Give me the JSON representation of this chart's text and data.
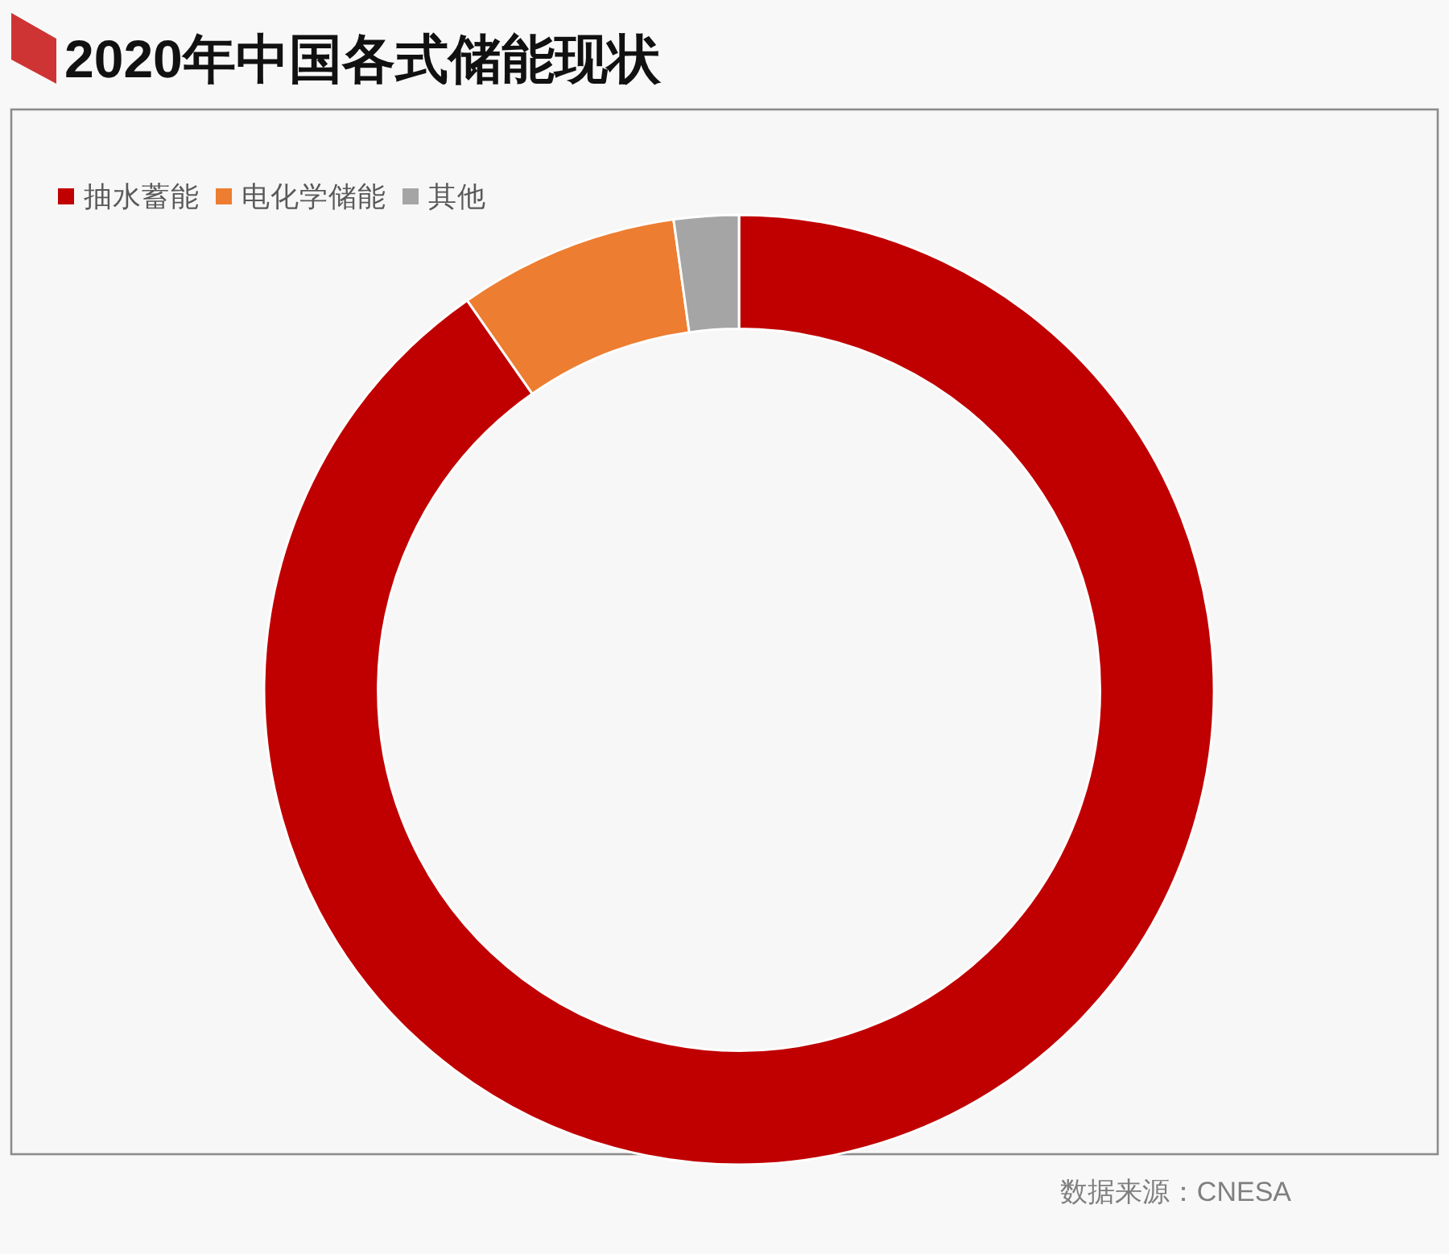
{
  "chart_data": {
    "type": "donut",
    "title": "2020年中国各式储能现状",
    "categories": [
      "抽水蓄能",
      "电化学储能",
      "其他"
    ],
    "values": [
      90.3,
      7.5,
      2.2
    ],
    "colors": [
      "#c00000",
      "#ed7d31",
      "#a5a5a5"
    ],
    "legend": "top left",
    "annotations": [
      "数据来源：CNESA"
    ]
  }
}
